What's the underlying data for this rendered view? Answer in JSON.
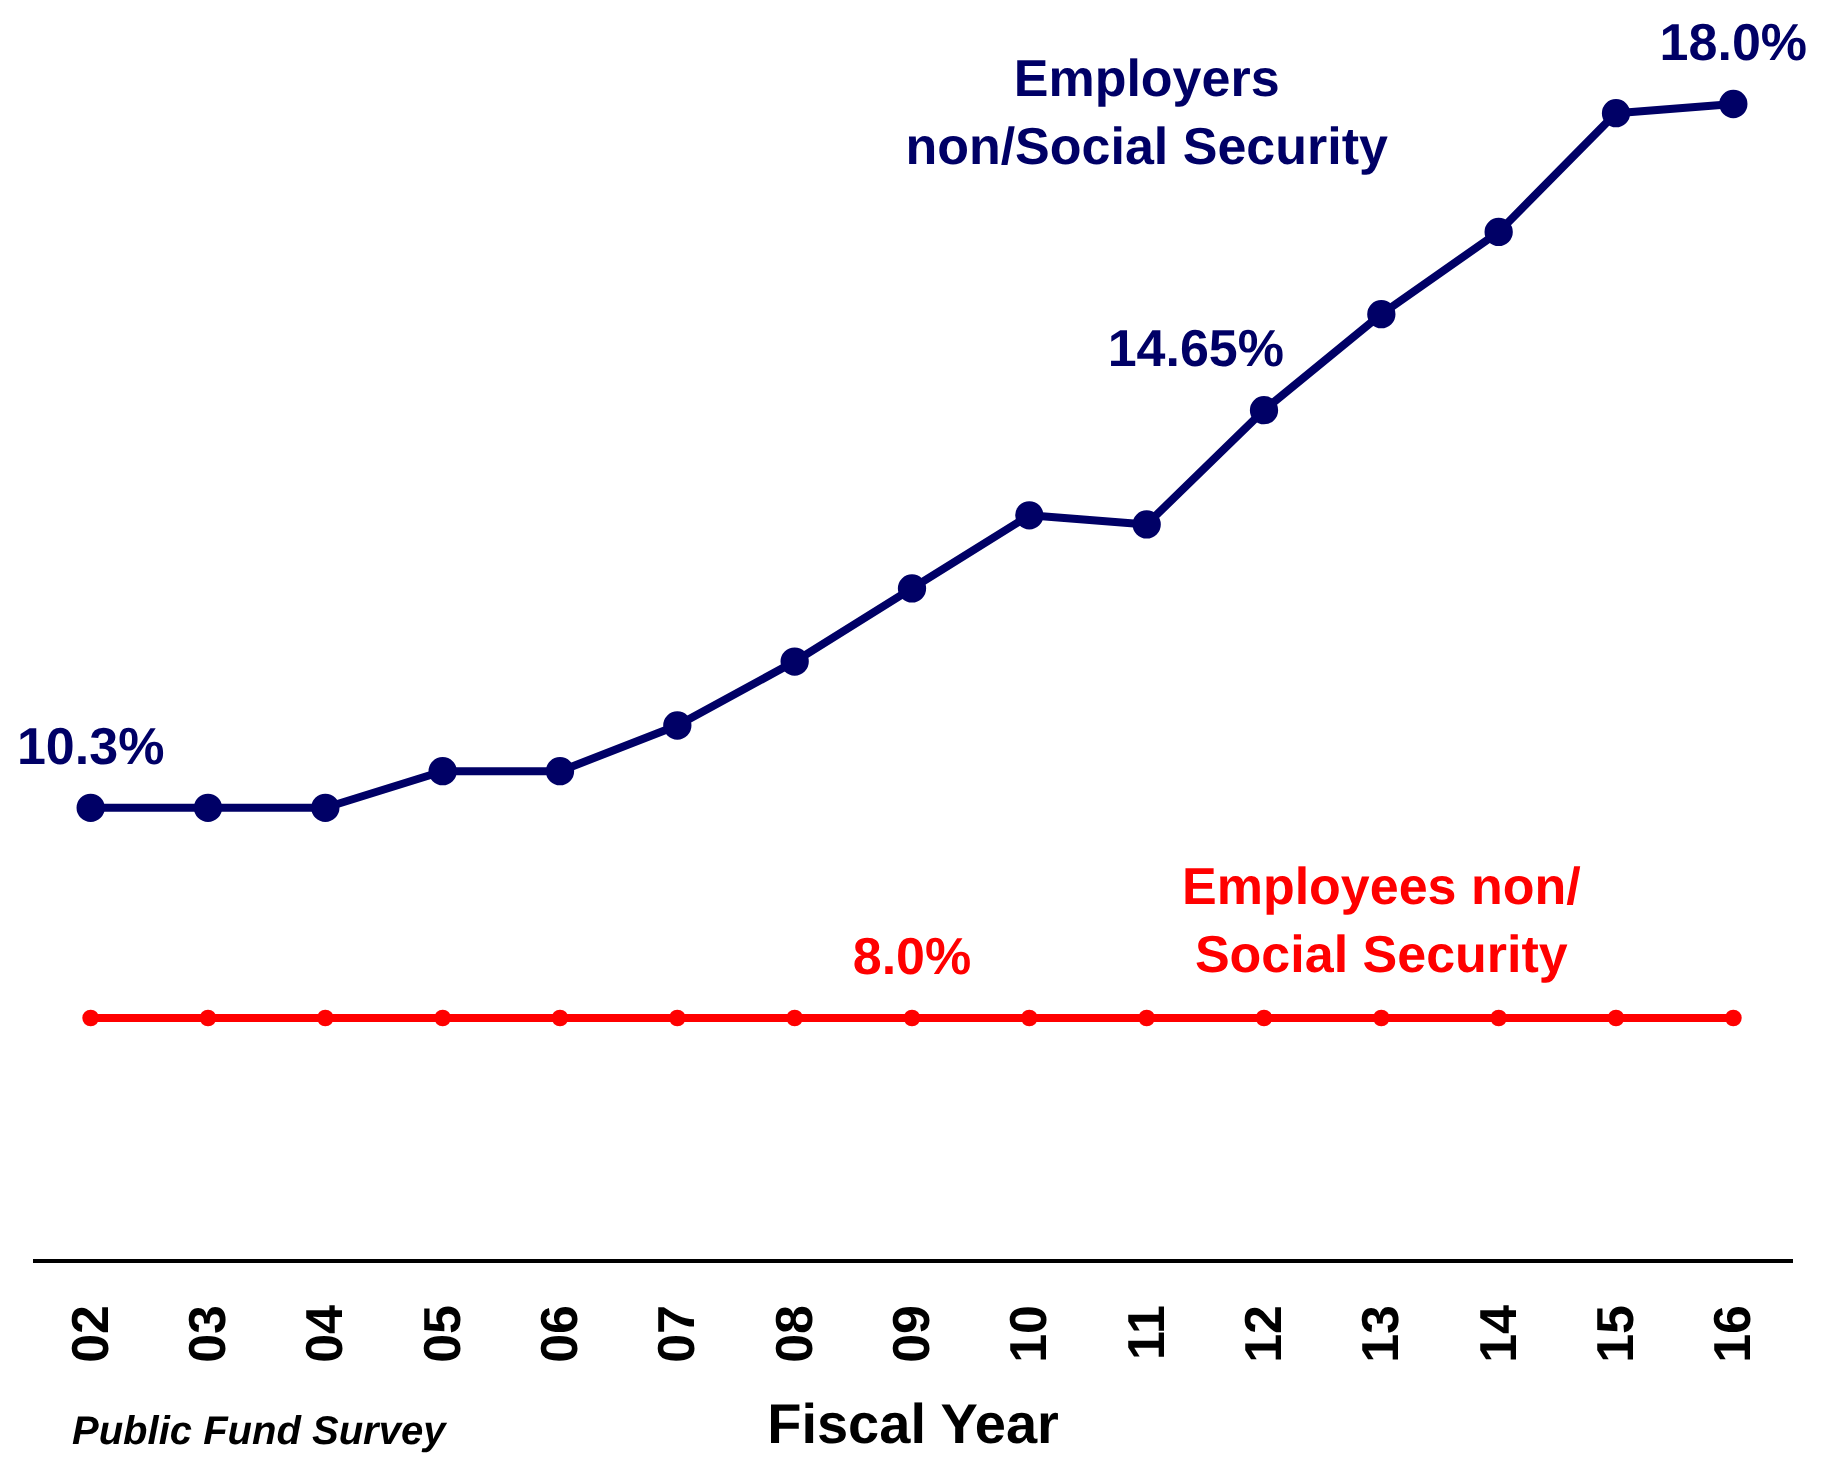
{
  "chart_data": {
    "type": "line",
    "xlabel": "Fiscal Year",
    "categories": [
      "02",
      "03",
      "04",
      "05",
      "06",
      "07",
      "08",
      "09",
      "10",
      "11",
      "12",
      "13",
      "14",
      "15",
      "16"
    ],
    "series": [
      {
        "name": "Employers\nnon/Social Security",
        "color": "#000066",
        "values": [
          10.3,
          10.3,
          10.3,
          10.7,
          10.7,
          11.2,
          11.9,
          12.7,
          13.5,
          13.4,
          14.65,
          15.7,
          16.6,
          17.9,
          18.0
        ],
        "value_labels": [
          "10.3%",
          null,
          null,
          null,
          null,
          null,
          null,
          null,
          null,
          null,
          "14.65%",
          null,
          null,
          null,
          "18.0%"
        ]
      },
      {
        "name": "Employees non/\nSocial Security",
        "color": "#ff0000",
        "values": [
          8.0,
          8.0,
          8.0,
          8.0,
          8.0,
          8.0,
          8.0,
          8.0,
          8.0,
          8.0,
          8.0,
          8.0,
          8.0,
          8.0,
          8.0
        ],
        "value_labels": [
          null,
          null,
          null,
          null,
          null,
          null,
          null,
          "8.0%",
          null,
          null,
          null,
          null,
          null,
          null,
          null
        ]
      }
    ],
    "tick_labels": "x",
    "grid": false,
    "legend": false,
    "marker": "circle",
    "line_style": "solid",
    "annotations": [
      "Public Fund Survey"
    ]
  }
}
